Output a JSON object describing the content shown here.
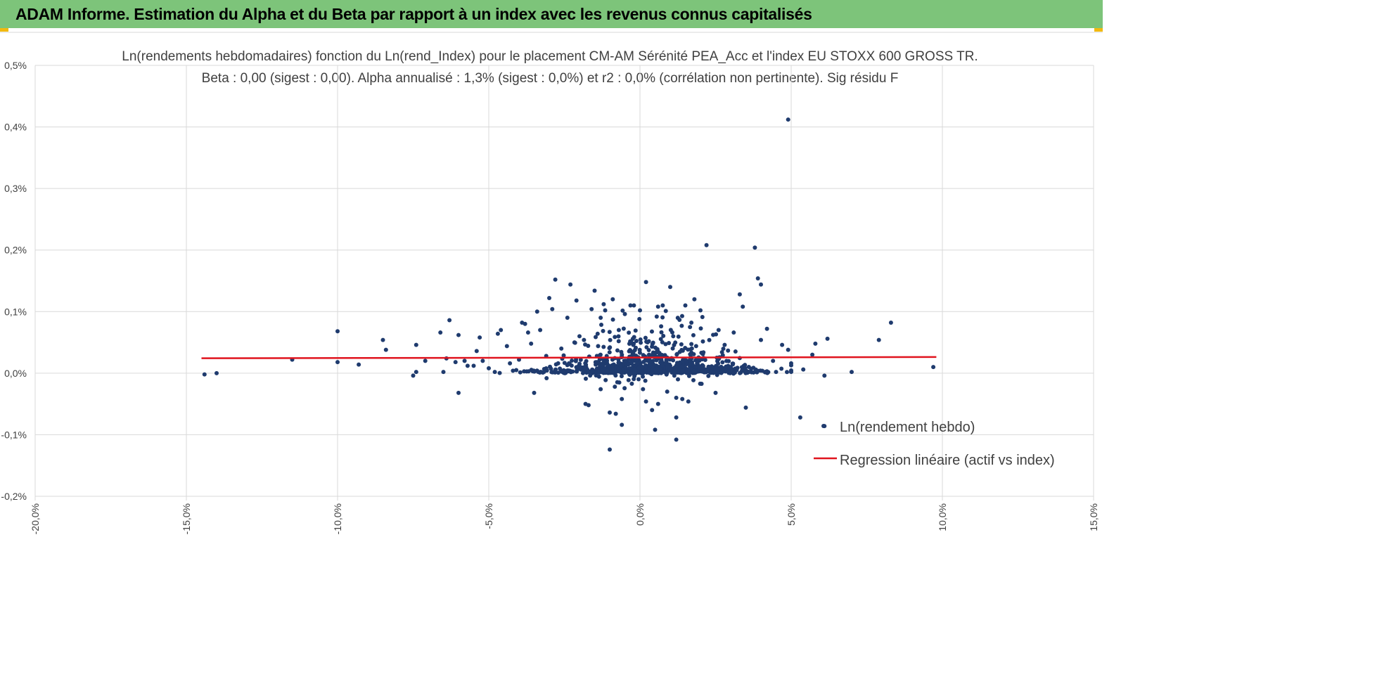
{
  "header": {
    "title": "ADAM Informe. Estimation du Alpha et du Beta par rapport à un index avec les revenus connus capitalisés"
  },
  "colors": {
    "header_bg": "#7dc47a",
    "corner_accent": "#f2b90f",
    "points": "#1f3b6e",
    "regression": "#e0141e",
    "grid": "#d9d9d9"
  },
  "chart_data": {
    "type": "scatter",
    "title_line1": "Ln(rendements hebdomadaires) fonction du Ln(rend_Index) pour le placement CM-AM Sérénité PEA_Acc et l'index EU STOXX 600 GROSS TR.",
    "title_line2": "Beta : 0,00 (sigest : 0,00).  Alpha annualisé : 1,3% (sigest : 0,0%) et r2 : 0,0% (corrélation non pertinente). Sig résidu F",
    "x_unit": "%",
    "y_unit": "%",
    "xlim": [
      -20,
      15
    ],
    "ylim": [
      -0.2,
      0.5
    ],
    "x_ticks": [
      "-20,0%",
      "-15,0%",
      "-10,0%",
      "-5,0%",
      "0,0%",
      "5,0%",
      "10,0%",
      "15,0%"
    ],
    "y_ticks": [
      "0,5%",
      "0,4%",
      "0,3%",
      "0,2%",
      "0,1%",
      "0,0%",
      "-0,1%",
      "-0,2%"
    ],
    "grid": true,
    "legend_position": "bottom-right",
    "series": [
      {
        "name": "Ln(rendement hebdo)",
        "kind": "points",
        "points": [
          [
            -14.4,
            -0.002
          ],
          [
            -14.0,
            0.0
          ],
          [
            -11.5,
            0.022
          ],
          [
            -10.0,
            0.068
          ],
          [
            -10.0,
            0.018
          ],
          [
            -9.3,
            0.014
          ],
          [
            -8.5,
            0.054
          ],
          [
            -8.4,
            0.038
          ],
          [
            -7.5,
            -0.004
          ],
          [
            -7.4,
            0.046
          ],
          [
            -7.4,
            0.002
          ],
          [
            -7.1,
            0.02
          ],
          [
            -6.6,
            0.066
          ],
          [
            -6.5,
            0.002
          ],
          [
            -6.4,
            0.024
          ],
          [
            -6.3,
            0.086
          ],
          [
            -6.1,
            0.018
          ],
          [
            -6.0,
            0.062
          ],
          [
            -6.0,
            -0.032
          ],
          [
            -5.8,
            0.02
          ],
          [
            -5.7,
            0.012
          ],
          [
            -5.5,
            0.012
          ],
          [
            -5.4,
            0.036
          ],
          [
            -5.3,
            0.058
          ],
          [
            -5.2,
            0.02
          ],
          [
            -5.0,
            0.008
          ],
          [
            -4.8,
            0.002
          ],
          [
            -4.7,
            0.064
          ],
          [
            -4.6,
            0.07
          ],
          [
            -4.4,
            0.044
          ],
          [
            -4.3,
            0.016
          ],
          [
            -4.2,
            0.004
          ],
          [
            -4.0,
            0.022
          ],
          [
            -3.9,
            0.082
          ],
          [
            -3.8,
            0.08
          ],
          [
            -3.7,
            0.066
          ],
          [
            -3.6,
            0.048
          ],
          [
            -3.5,
            -0.032
          ],
          [
            -3.4,
            0.1
          ],
          [
            -3.3,
            0.07
          ],
          [
            -3.1,
            0.028
          ],
          [
            -3.0,
            0.122
          ],
          [
            -2.9,
            0.104
          ],
          [
            -2.8,
            0.152
          ],
          [
            -2.6,
            0.04
          ],
          [
            -2.4,
            0.09
          ],
          [
            -2.3,
            0.144
          ],
          [
            -2.1,
            0.118
          ],
          [
            -2.0,
            0.06
          ],
          [
            -1.8,
            -0.05
          ],
          [
            -1.7,
            -0.052
          ],
          [
            -1.6,
            0.104
          ],
          [
            -1.5,
            0.134
          ],
          [
            -1.4,
            0.064
          ],
          [
            -1.3,
            0.09
          ],
          [
            -1.3,
            -0.026
          ],
          [
            -1.2,
            0.112
          ],
          [
            -1.1,
            0.024
          ],
          [
            -1.0,
            -0.064
          ],
          [
            -1.0,
            -0.124
          ],
          [
            -0.9,
            0.12
          ],
          [
            -0.8,
            -0.066
          ],
          [
            -0.7,
            0.07
          ],
          [
            -0.6,
            -0.042
          ],
          [
            -0.6,
            -0.084
          ],
          [
            -0.5,
            0.096
          ],
          [
            -0.4,
            0.002
          ],
          [
            -0.3,
            0.05
          ],
          [
            -0.2,
            0.11
          ],
          [
            0.0,
            0.102
          ],
          [
            0.1,
            -0.026
          ],
          [
            0.2,
            0.148
          ],
          [
            0.2,
            -0.046
          ],
          [
            0.3,
            0.03
          ],
          [
            0.4,
            -0.06
          ],
          [
            0.5,
            -0.092
          ],
          [
            0.6,
            0.108
          ],
          [
            0.6,
            -0.05
          ],
          [
            0.7,
            0.076
          ],
          [
            0.8,
            0.002
          ],
          [
            0.9,
            -0.03
          ],
          [
            1.0,
            0.14
          ],
          [
            1.1,
            0.06
          ],
          [
            1.2,
            -0.04
          ],
          [
            1.2,
            -0.072
          ],
          [
            1.2,
            -0.108
          ],
          [
            1.4,
            -0.042
          ],
          [
            1.5,
            0.11
          ],
          [
            1.6,
            -0.046
          ],
          [
            1.7,
            0.082
          ],
          [
            1.8,
            0.12
          ],
          [
            2.0,
            0.102
          ],
          [
            2.2,
            0.208
          ],
          [
            2.3,
            0.01
          ],
          [
            2.5,
            -0.032
          ],
          [
            2.6,
            0.07
          ],
          [
            2.8,
            0.046
          ],
          [
            3.0,
            0.01
          ],
          [
            3.1,
            0.066
          ],
          [
            3.3,
            0.128
          ],
          [
            3.4,
            0.108
          ],
          [
            3.5,
            -0.056
          ],
          [
            3.6,
            0.002
          ],
          [
            3.8,
            0.204
          ],
          [
            3.9,
            0.154
          ],
          [
            4.0,
            0.144
          ],
          [
            4.0,
            0.054
          ],
          [
            4.2,
            0.072
          ],
          [
            4.4,
            0.02
          ],
          [
            4.5,
            0.002
          ],
          [
            4.7,
            0.046
          ],
          [
            4.9,
            0.412
          ],
          [
            4.9,
            0.038
          ],
          [
            5.0,
            0.016
          ],
          [
            5.3,
            -0.072
          ],
          [
            5.4,
            0.006
          ],
          [
            5.7,
            0.03
          ],
          [
            5.8,
            0.048
          ],
          [
            6.1,
            -0.086
          ],
          [
            6.1,
            -0.004
          ],
          [
            6.2,
            0.056
          ],
          [
            7.0,
            0.002
          ],
          [
            7.9,
            0.054
          ],
          [
            8.3,
            0.082
          ],
          [
            9.7,
            0.01
          ]
        ],
        "cluster": {
          "count": 900,
          "x_center": 0.3,
          "x_sd": 1.6,
          "y_base": 0.0,
          "y_scale": 0.03,
          "seed": 7
        }
      },
      {
        "name": "Regression linéaire (actif vs index)",
        "kind": "line",
        "points": [
          [
            -14.5,
            0.0242
          ],
          [
            9.8,
            0.0262
          ]
        ]
      }
    ]
  }
}
